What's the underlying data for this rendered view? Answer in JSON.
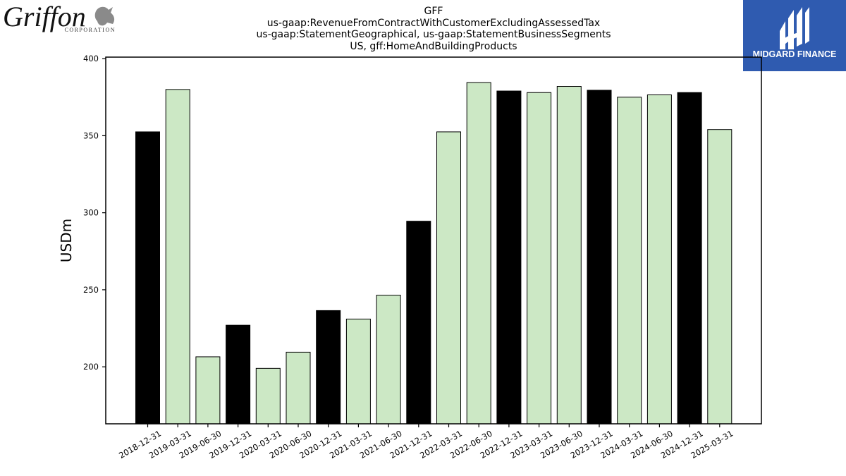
{
  "logos": {
    "left_text": "Griffon",
    "left_subtext": "CORPORATION",
    "right_text": "MIDGARD FINANCE"
  },
  "chart_data": {
    "type": "bar",
    "title": "GFF",
    "subtitle_lines": [
      "us-gaap:RevenueFromContractWithCustomerExcludingAssessedTax",
      "us-gaap:StatementGeographical, us-gaap:StatementBusinessSegments",
      "US, gff:HomeAndBuildingProducts"
    ],
    "xlabel": "",
    "ylabel": "USDm",
    "ylim": [
      163,
      401
    ],
    "yticks": [
      200,
      250,
      300,
      350,
      400
    ],
    "grid": false,
    "categories": [
      "2018-12-31",
      "2019-03-31",
      "2019-06-30",
      "2019-12-31",
      "2020-03-31",
      "2020-06-30",
      "2020-12-31",
      "2021-03-31",
      "2021-06-30",
      "2021-12-31",
      "2022-03-31",
      "2022-06-30",
      "2022-12-31",
      "2023-03-31",
      "2023-06-30",
      "2023-12-31",
      "2024-03-31",
      "2024-06-30",
      "2024-12-31",
      "2025-03-31"
    ],
    "values": [
      352.5,
      380,
      206.5,
      227,
      199,
      209.5,
      236.5,
      231,
      246.5,
      294.5,
      352.5,
      384.5,
      379,
      378,
      382,
      379.5,
      375,
      376.5,
      378,
      354
    ],
    "colors": {
      "q4_fill": "#000000",
      "other_fill": "#cce8c5",
      "edge": "#000000"
    }
  }
}
